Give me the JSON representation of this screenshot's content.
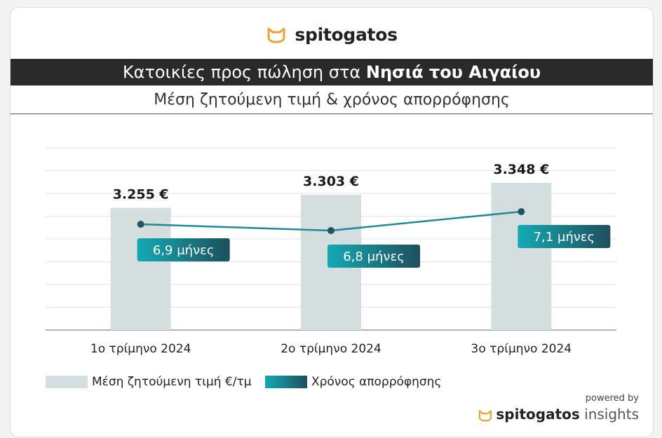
{
  "brand": {
    "name": "spitogatos",
    "powered_by": "powered by",
    "insights_name": "spitogatos",
    "insights_suffix": "insights"
  },
  "header": {
    "title_prefix": "Κατοικίες προς πώληση στα",
    "title_region": "Νησιά του Αιγαίου",
    "subtitle": "Μέση ζητούμενη τιμή & χρόνος απορρόφησης"
  },
  "colors": {
    "bar": "#d5dede",
    "line": "#1d8a96",
    "label_grad_start": "#13aab5",
    "label_grad_end": "#1f4f5c",
    "accent_orange": "#f0a030"
  },
  "chart_data": {
    "type": "bar",
    "categories": [
      "1ο τρίμηνο 2024",
      "2ο τρίμηνο 2024",
      "3ο τρίμηνο 2024"
    ],
    "series": [
      {
        "name": "Μέση ζητούμενη τιμή €/τμ",
        "type": "bar",
        "values": [
          3255,
          3303,
          3348
        ],
        "labels": [
          "3.255 €",
          "3.303 €",
          "3.348 €"
        ]
      },
      {
        "name": "Χρόνος απορρόφησης",
        "type": "line",
        "values": [
          6.9,
          6.8,
          7.1
        ],
        "labels": [
          "6,9 μήνες",
          "6,8 μήνες",
          "7,1 μήνες"
        ]
      }
    ],
    "grid": true,
    "legend": "bottom-left"
  }
}
